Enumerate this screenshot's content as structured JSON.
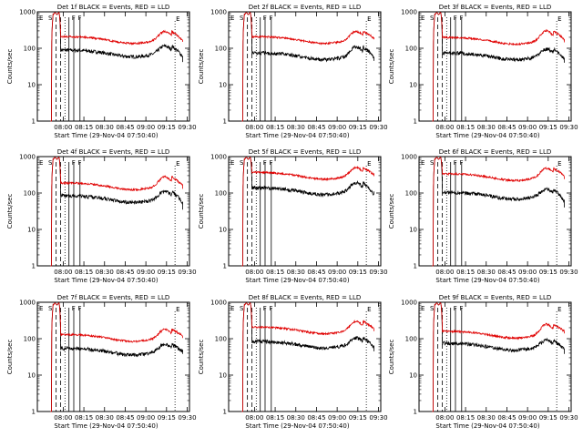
{
  "chart_data": [
    {
      "type": "line",
      "title": "Det 1f BLACK = Events, RED = LLD",
      "xlabel": "Start Time (29-Nov-04 07:50:40)",
      "ylabel": "Counts/sec",
      "yscale": "log",
      "ylim": [
        1,
        1000
      ],
      "xticks": [
        "08:00",
        "08:15",
        "08:30",
        "08:45",
        "09:00",
        "09:15",
        "09:30"
      ],
      "yticks": [
        "1",
        "10",
        "100",
        "1000"
      ],
      "markers": [
        "E",
        "S",
        "F",
        "F",
        "E"
      ],
      "series": [
        {
          "name": "BLACK = Events",
          "color": "#000000",
          "level": 90,
          "bump": 115,
          "end": 60,
          "tail": 42
        },
        {
          "name": "RED = LLD",
          "color": "#e00000",
          "level": 210,
          "bump": 290,
          "end": 160,
          "tail": 150
        }
      ]
    },
    {
      "type": "line",
      "title": "Det 2f BLACK = Events, RED = LLD",
      "xlabel": "Start Time (29-Nov-04 07:50:40)",
      "ylabel": "Counts/sec",
      "yscale": "log",
      "ylim": [
        1,
        1000
      ],
      "xticks": [
        "08:00",
        "08:15",
        "08:30",
        "08:45",
        "09:00",
        "09:15",
        "09:30"
      ],
      "yticks": [
        "1",
        "10",
        "100",
        "1000"
      ],
      "markers": [
        "E",
        "S",
        "F",
        "F",
        "E"
      ],
      "series": [
        {
          "name": "BLACK = Events",
          "color": "#000000",
          "level": 75,
          "bump": 110,
          "end": 55,
          "tail": 45
        },
        {
          "name": "RED = LLD",
          "color": "#e00000",
          "level": 210,
          "bump": 290,
          "end": 190,
          "tail": 175
        }
      ]
    },
    {
      "type": "line",
      "title": "Det 3f BLACK = Events, RED = LLD",
      "xlabel": "Start Time (29-Nov-04 07:50:40)",
      "ylabel": "Counts/sec",
      "yscale": "log",
      "ylim": [
        1,
        1000
      ],
      "xticks": [
        "08:00",
        "08:15",
        "08:30",
        "08:45",
        "09:00",
        "09:15",
        "09:30"
      ],
      "yticks": [
        "1",
        "10",
        "100",
        "1000"
      ],
      "markers": [
        "E",
        "S",
        "F",
        "F",
        "E"
      ],
      "series": [
        {
          "name": "BLACK = Events",
          "color": "#000000",
          "level": 75,
          "bump": 95,
          "end": 50,
          "tail": 40
        },
        {
          "name": "RED = LLD",
          "color": "#e00000",
          "level": 200,
          "bump": 300,
          "end": 170,
          "tail": 145
        }
      ]
    },
    {
      "type": "line",
      "title": "Det 4f BLACK = Events, RED = LLD",
      "xlabel": "Start Time (29-Nov-04 07:50:40)",
      "ylabel": "Counts/sec",
      "yscale": "log",
      "ylim": [
        1,
        1000
      ],
      "xticks": [
        "08:00",
        "08:15",
        "08:30",
        "08:45",
        "09:00",
        "09:15",
        "09:30"
      ],
      "yticks": [
        "1",
        "10",
        "100",
        "1000"
      ],
      "markers": [
        "E",
        "S",
        "F",
        "F",
        "E"
      ],
      "series": [
        {
          "name": "BLACK = Events",
          "color": "#000000",
          "level": 85,
          "bump": 110,
          "end": 55,
          "tail": 35
        },
        {
          "name": "RED = LLD",
          "color": "#e00000",
          "level": 190,
          "bump": 280,
          "end": 160,
          "tail": 130
        }
      ]
    },
    {
      "type": "line",
      "title": "Det 5f BLACK = Events, RED = LLD",
      "xlabel": "Start Time (29-Nov-04 07:50:40)",
      "ylabel": "Counts/sec",
      "yscale": "log",
      "ylim": [
        1,
        1000
      ],
      "xticks": [
        "08:00",
        "08:15",
        "08:30",
        "08:45",
        "09:00",
        "09:15",
        "09:30"
      ],
      "yticks": [
        "1",
        "10",
        "100",
        "1000"
      ],
      "markers": [
        "E",
        "S",
        "F",
        "F",
        "E"
      ],
      "series": [
        {
          "name": "BLACK = Events",
          "color": "#000000",
          "level": 140,
          "bump": 190,
          "end": 90,
          "tail": 110
        },
        {
          "name": "RED = LLD",
          "color": "#e00000",
          "level": 370,
          "bump": 500,
          "end": 320,
          "tail": 290
        }
      ]
    },
    {
      "type": "line",
      "title": "Det 6f BLACK = Events, RED = LLD",
      "xlabel": "Start Time (29-Nov-04 07:50:40)",
      "ylabel": "Counts/sec",
      "yscale": "log",
      "ylim": [
        1,
        1000
      ],
      "xticks": [
        "08:00",
        "08:15",
        "08:30",
        "08:45",
        "09:00",
        "09:15",
        "09:30"
      ],
      "yticks": [
        "1",
        "10",
        "100",
        "1000"
      ],
      "markers": [
        "E",
        "S",
        "F",
        "F",
        "E"
      ],
      "series": [
        {
          "name": "BLACK = Events",
          "color": "#000000",
          "level": 105,
          "bump": 125,
          "end": 60,
          "tail": 40
        },
        {
          "name": "RED = LLD",
          "color": "#e00000",
          "level": 340,
          "bump": 480,
          "end": 300,
          "tail": 240
        }
      ]
    },
    {
      "type": "line",
      "title": "Det 7f BLACK = Events, RED = LLD",
      "xlabel": "Start Time (29-Nov-04 07:50:40)",
      "ylabel": "Counts/sec",
      "yscale": "log",
      "ylim": [
        1,
        1000
      ],
      "xticks": [
        "08:00",
        "08:15",
        "08:30",
        "08:45",
        "09:00",
        "09:15",
        "09:30"
      ],
      "yticks": [
        "1",
        "10",
        "100",
        "1000"
      ],
      "markers": [
        "E",
        "S",
        "F",
        "F",
        "E"
      ],
      "series": [
        {
          "name": "BLACK = Events",
          "color": "#000000",
          "level": 55,
          "bump": 70,
          "end": 45,
          "tail": 38
        },
        {
          "name": "RED = LLD",
          "color": "#e00000",
          "level": 130,
          "bump": 180,
          "end": 120,
          "tail": 105
        }
      ]
    },
    {
      "type": "line",
      "title": "Det 8f BLACK = Events, RED = LLD",
      "xlabel": "Start Time (29-Nov-04 07:50:40)",
      "ylabel": "Counts/sec",
      "yscale": "log",
      "ylim": [
        1,
        1000
      ],
      "xticks": [
        "08:00",
        "08:15",
        "08:30",
        "08:45",
        "09:00",
        "09:15",
        "09:30"
      ],
      "yticks": [
        "1",
        "10",
        "100",
        "1000"
      ],
      "markers": [
        "E",
        "S",
        "F",
        "F",
        "E"
      ],
      "series": [
        {
          "name": "BLACK = Events",
          "color": "#000000",
          "level": 85,
          "bump": 105,
          "end": 60,
          "tail": 45
        },
        {
          "name": "RED = LLD",
          "color": "#e00000",
          "level": 210,
          "bump": 300,
          "end": 190,
          "tail": 160
        }
      ]
    },
    {
      "type": "line",
      "title": "Det 9f BLACK = Events, RED = LLD",
      "xlabel": "Start Time (29-Nov-04 07:50:40)",
      "ylabel": "Counts/sec",
      "yscale": "log",
      "ylim": [
        1,
        1000
      ],
      "xticks": [
        "08:00",
        "08:15",
        "08:30",
        "08:45",
        "09:00",
        "09:15",
        "09:30"
      ],
      "yticks": [
        "1",
        "10",
        "100",
        "1000"
      ],
      "markers": [
        "E",
        "S",
        "F",
        "F",
        "E"
      ],
      "series": [
        {
          "name": "BLACK = Events",
          "color": "#000000",
          "level": 75,
          "bump": 90,
          "end": 50,
          "tail": 38
        },
        {
          "name": "RED = LLD",
          "color": "#e00000",
          "level": 160,
          "bump": 250,
          "end": 160,
          "tail": 140
        }
      ]
    }
  ]
}
